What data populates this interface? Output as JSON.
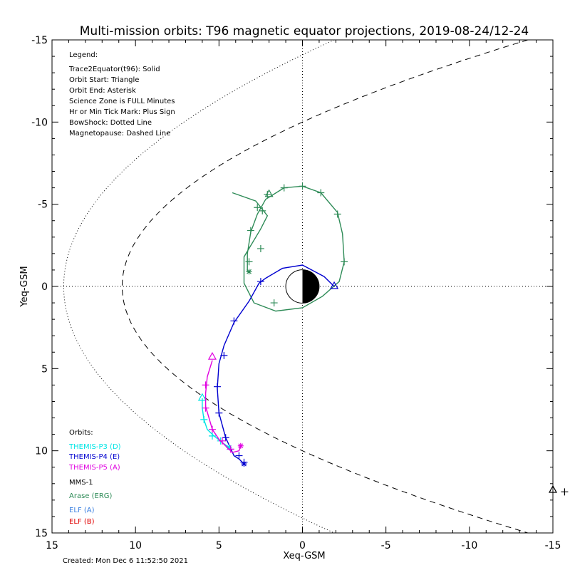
{
  "chart_data": {
    "type": "line",
    "title": "Multi-mission orbits: T96 magnetic equator projections, 2019-08-24/12-24",
    "xlabel": "Xeq-GSM",
    "ylabel": "Yeq-GSM",
    "xlim": [
      15,
      -15
    ],
    "ylim": [
      -15,
      15
    ],
    "x_ticks": [
      "15",
      "10",
      "5",
      "0",
      "-5",
      "-10",
      "-15"
    ],
    "y_ticks": [
      "-15",
      "-10",
      "-5",
      "0",
      "5",
      "10",
      "15"
    ],
    "legend": {
      "lines": [
        "Legend:",
        "Trace2Equator(t96): Solid",
        "Orbit Start: Triangle",
        "Orbit End: Asterisk",
        "Science Zone is FULL Minutes",
        "Hr or Min Tick Mark: Plus Sign",
        "BowShock: Dotted Line",
        "Magnetopause: Dashed Line"
      ]
    },
    "orbits_heading": "Orbits:",
    "orbits": [
      {
        "name": "THEMIS-P3 (D)",
        "color": "#00e5e5"
      },
      {
        "name": "THEMIS-P4 (E)",
        "color": "#0000d0"
      },
      {
        "name": "THEMIS-P5 (A)",
        "color": "#e000e0"
      },
      {
        "name": "MMS-1",
        "color": "#000000"
      },
      {
        "name": "Arase (ERG)",
        "color": "#2e8b57"
      },
      {
        "name": "ELF (A)",
        "color": "#3a7fe0"
      },
      {
        "name": "ELF (B)",
        "color": "#e00000"
      }
    ],
    "created": "Created: Mon Dec  6 11:52:50 2021",
    "series": [
      {
        "key": "arase",
        "color": "#2e8b57",
        "points": [
          [
            3.3,
            -0.9
          ],
          [
            3.3,
            -2.0
          ],
          [
            3.1,
            -3.3
          ],
          [
            2.7,
            -4.4
          ],
          [
            2.2,
            -5.3
          ],
          [
            1.1,
            -6.0
          ],
          [
            0.0,
            -6.1
          ],
          [
            -1.1,
            -5.7
          ],
          [
            -2.1,
            -4.5
          ],
          [
            -2.4,
            -3.2
          ],
          [
            -2.5,
            -1.5
          ],
          [
            -2.2,
            -0.3
          ],
          [
            -1.2,
            0.6
          ],
          [
            0.0,
            1.3
          ],
          [
            1.6,
            1.5
          ],
          [
            2.9,
            1.0
          ],
          [
            3.5,
            -0.2
          ],
          [
            3.5,
            -1.8
          ],
          [
            2.5,
            -3.5
          ],
          [
            2.1,
            -4.3
          ],
          [
            2.8,
            -5.2
          ],
          [
            4.2,
            -5.7
          ]
        ],
        "ticks": [
          [
            3.2,
            -1.5
          ],
          [
            3.1,
            -3.4
          ],
          [
            2.7,
            -4.8
          ],
          [
            2.1,
            -5.6
          ],
          [
            1.1,
            -6.0
          ],
          [
            0.0,
            -6.1
          ],
          [
            -1.1,
            -5.7
          ],
          [
            -2.1,
            -4.4
          ],
          [
            -2.5,
            -1.5
          ],
          [
            1.7,
            1.0
          ],
          [
            2.5,
            -2.3
          ],
          [
            2.4,
            -4.6
          ]
        ],
        "start": [
          2.0,
          -5.6
        ],
        "end": [
          3.2,
          -0.9
        ]
      },
      {
        "key": "themis_p4",
        "color": "#0000d0",
        "points": [
          [
            -1.9,
            0.0
          ],
          [
            -1.3,
            -0.6
          ],
          [
            0.0,
            -1.3
          ],
          [
            1.2,
            -1.1
          ],
          [
            2.2,
            -0.5
          ],
          [
            2.6,
            -0.2
          ],
          [
            3.2,
            0.9
          ],
          [
            4.1,
            2.2
          ],
          [
            4.7,
            3.6
          ],
          [
            5.0,
            4.7
          ],
          [
            5.1,
            6.2
          ],
          [
            5.0,
            7.7
          ],
          [
            4.6,
            9.2
          ],
          [
            4.1,
            10.3
          ],
          [
            3.8,
            10.5
          ],
          [
            3.5,
            10.8
          ]
        ],
        "ticks": [
          [
            2.5,
            -0.3
          ],
          [
            4.1,
            2.1
          ],
          [
            4.7,
            4.2
          ],
          [
            5.1,
            6.1
          ],
          [
            5.0,
            7.7
          ],
          [
            4.6,
            9.2
          ],
          [
            3.8,
            10.3
          ],
          [
            3.5,
            10.7
          ]
        ],
        "start": [
          -1.9,
          0.0
        ],
        "end": [
          3.5,
          10.8
        ]
      },
      {
        "key": "themis_p3",
        "color": "#00e5e5",
        "points": [
          [
            6.0,
            6.8
          ],
          [
            6.0,
            7.4
          ],
          [
            5.9,
            8.1
          ],
          [
            5.7,
            8.7
          ],
          [
            5.3,
            9.1
          ],
          [
            4.8,
            9.5
          ],
          [
            4.4,
            9.8
          ]
        ],
        "ticks": [
          [
            5.9,
            8.1
          ],
          [
            5.4,
            9.1
          ],
          [
            4.9,
            9.4
          ]
        ],
        "start": [
          6.0,
          6.8
        ],
        "end": [
          4.4,
          9.8
        ]
      },
      {
        "key": "themis_p5",
        "color": "#e000e0",
        "points": [
          [
            5.4,
            4.5
          ],
          [
            5.7,
            5.5
          ],
          [
            5.8,
            6.5
          ],
          [
            5.8,
            7.3
          ],
          [
            5.6,
            8.0
          ],
          [
            5.4,
            8.7
          ],
          [
            5.0,
            9.3
          ],
          [
            4.5,
            9.8
          ],
          [
            4.2,
            10.1
          ],
          [
            3.8,
            10.0
          ],
          [
            3.7,
            9.7
          ]
        ],
        "ticks": [
          [
            5.8,
            6.0
          ],
          [
            5.8,
            7.4
          ],
          [
            5.4,
            8.7
          ],
          [
            4.8,
            9.4
          ],
          [
            4.3,
            9.9
          ]
        ],
        "start": [
          5.4,
          4.3
        ],
        "end": [
          3.7,
          9.7
        ]
      }
    ],
    "offscreen_marker": {
      "triangle": [
        -15.0,
        12.4
      ],
      "plus": [
        -15.7,
        12.5
      ]
    }
  }
}
